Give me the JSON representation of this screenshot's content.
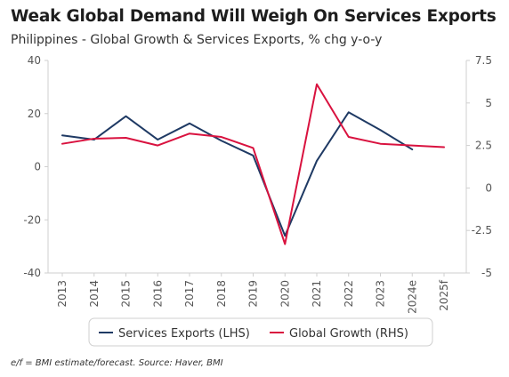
{
  "title": "Weak Global Demand Will Weigh On Services Exports",
  "subtitle": "Philippines - Global Growth & Services Exports, % chg y-o-y",
  "footnote": "e/f = BMI estimate/forecast. Source: Haver, BMI",
  "chart_data": {
    "type": "line",
    "categories": [
      "2013",
      "2014",
      "2015",
      "2016",
      "2017",
      "2018",
      "2019",
      "2020",
      "2021",
      "2022",
      "2023",
      "2024e",
      "2025f"
    ],
    "series": [
      {
        "name": "Services Exports (LHS)",
        "axis": "left",
        "color": "#1f3a64",
        "values": [
          11.8,
          10.2,
          19.0,
          10.2,
          16.3,
          9.8,
          4.2,
          -26.0,
          2.2,
          20.5,
          13.8,
          6.5,
          null
        ]
      },
      {
        "name": "Global Growth (RHS)",
        "axis": "right",
        "color": "#d9123f",
        "values": [
          2.6,
          2.9,
          2.95,
          2.5,
          3.2,
          3.0,
          2.35,
          -3.3,
          6.1,
          3.0,
          2.6,
          2.5,
          2.4
        ]
      }
    ],
    "y_left": {
      "min": -40,
      "max": 40,
      "ticks": [
        "40",
        "20",
        "0",
        "-20",
        "-40"
      ]
    },
    "y_right": {
      "min": -5,
      "max": 7.5,
      "ticks": [
        "7.5",
        "5",
        "2.5",
        "0",
        "-2.5",
        "-5"
      ]
    },
    "grid": false,
    "legend_position": "bottom"
  }
}
